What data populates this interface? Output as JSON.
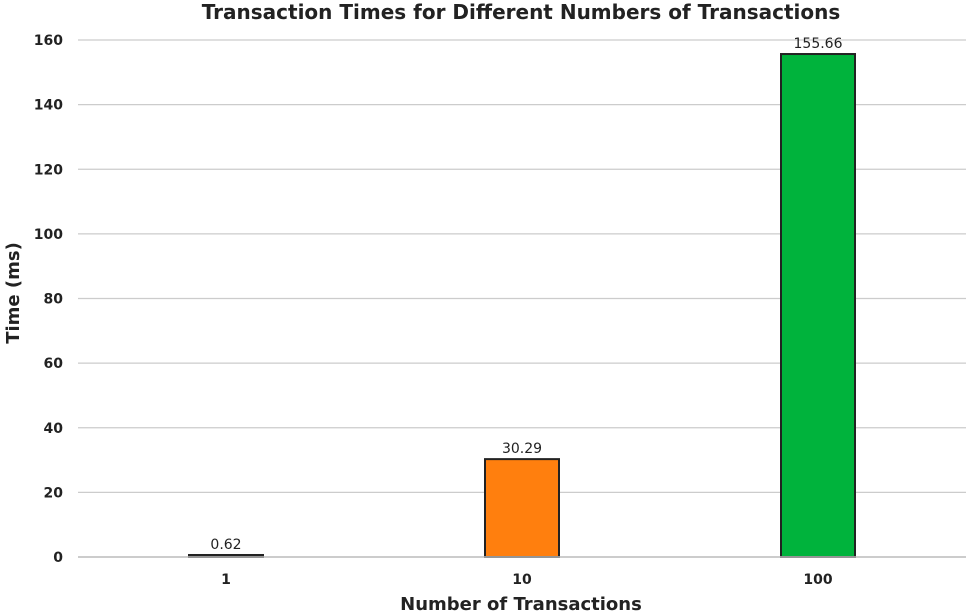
{
  "chart_data": {
    "type": "bar",
    "title": "Transaction Times for Different Numbers of Transactions",
    "xlabel": "Number of Transactions",
    "ylabel": "Time (ms)",
    "categories": [
      "1",
      "10",
      "100"
    ],
    "values": [
      0.62,
      30.29,
      155.66
    ],
    "data_labels": [
      "0.62",
      "30.29",
      "155.66"
    ],
    "colors": [
      "#1f77b4",
      "#ff7f0e",
      "#00b33c"
    ],
    "ylim": [
      0,
      160
    ],
    "yticks": [
      0,
      20,
      40,
      60,
      80,
      100,
      120,
      140,
      160
    ],
    "grid": true,
    "legend": "none"
  }
}
